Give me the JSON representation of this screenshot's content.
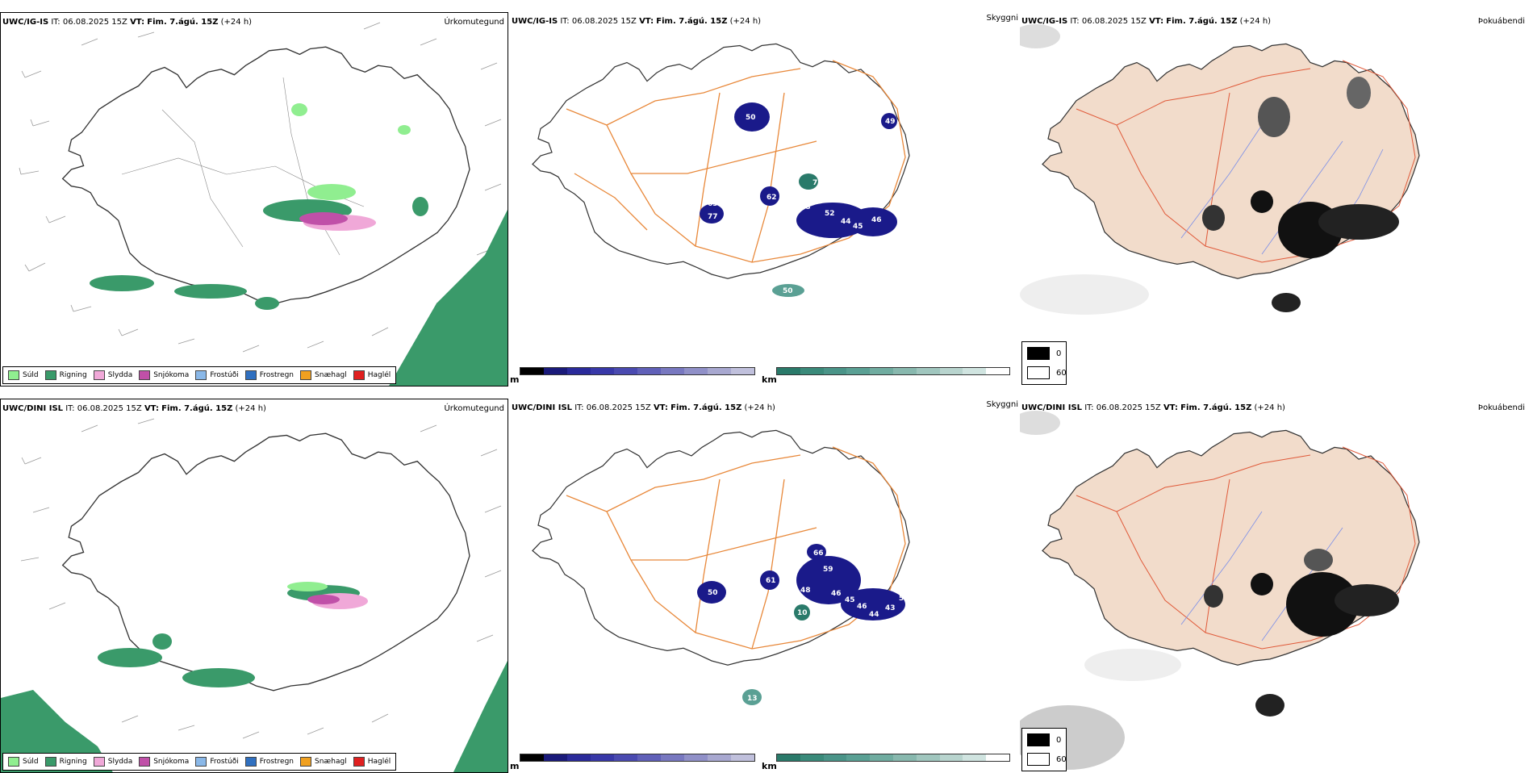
{
  "top_row": {
    "precip": {
      "model": "UWC/IG-IS",
      "it_label": "IT:",
      "it_value": "06.08.2025 15Z",
      "vt_label": "VT:",
      "vt_value": "Fim. 7.ágú. 15Z",
      "lead": "(+24 h)",
      "title": "Úrkomutegund"
    },
    "cloud": {
      "model": "UWC/IG-IS",
      "it_label": "IT:",
      "it_value": "06.08.2025 15Z",
      "vt_label": "VT:",
      "vt_value": "Fim. 7.ágú. 15Z",
      "lead": "(+24 h)",
      "title": "Skyggni",
      "numbers": [
        "50",
        "62",
        "63",
        "77",
        "78",
        "52",
        "44",
        "45",
        "46",
        "38",
        "49",
        "50",
        "47"
      ]
    },
    "fog": {
      "model": "UWC/IG-IS",
      "it_label": "IT:",
      "it_value": "06.08.2025 15Z",
      "vt_label": "VT:",
      "vt_value": "Fim. 7.ágú. 15Z",
      "lead": "(+24 h)",
      "title": "Þokuábendi"
    }
  },
  "bottom_row": {
    "precip": {
      "model": "UWC/DINI ISL",
      "it_label": "IT:",
      "it_value": "06.08.2025 15Z",
      "vt_label": "VT:",
      "vt_value": "Fim. 7.ágú. 15Z",
      "lead": "(+24 h)",
      "title": "Úrkomutegund"
    },
    "cloud": {
      "model": "UWC/DINI ISL",
      "it_label": "IT:",
      "it_value": "06.08.2025 15Z",
      "vt_label": "VT:",
      "vt_value": "Fim. 7.ágú. 15Z",
      "lead": "(+24 h)",
      "title": "Skyggni",
      "numbers": [
        "50",
        "61",
        "66",
        "59",
        "48",
        "46",
        "45",
        "46",
        "44",
        "43",
        "53",
        "10",
        "13"
      ]
    },
    "fog": {
      "model": "UWC/DINI ISL",
      "it_label": "IT:",
      "it_value": "06.08.2025 15Z",
      "vt_label": "VT:",
      "vt_value": "Fim. 7.ágú. 15Z",
      "lead": "(+24 h)",
      "title": "Þokuábendi"
    }
  },
  "precip_legend": [
    {
      "label": "Súld",
      "color": "#90ee90"
    },
    {
      "label": "Rigning",
      "color": "#3a9a6a"
    },
    {
      "label": "Slydda",
      "color": "#f0a8d8"
    },
    {
      "label": "Snjókoma",
      "color": "#c050a8"
    },
    {
      "label": "Frostúði",
      "color": "#8ab8e8"
    },
    {
      "label": "Frostregn",
      "color": "#3070c0"
    },
    {
      "label": "Snæhagl",
      "color": "#f0a020"
    },
    {
      "label": "Haglél",
      "color": "#e02020"
    }
  ],
  "cloud_base_bar": {
    "unit": "m",
    "ticks": [
      "0",
      "200",
      "400",
      "600",
      "800",
      "1000"
    ],
    "colors": [
      "#000000",
      "#1a1a7a",
      "#2a2a9a",
      "#3838a8",
      "#4a4ab0",
      "#6060b8",
      "#7878c0",
      "#9090c8",
      "#a8a8d0",
      "#c0c0dc"
    ]
  },
  "cloud_height_bar": {
    "unit": "km",
    "ticks": [
      "1",
      "2",
      "3",
      "4",
      "5",
      "6",
      "7",
      "8",
      "9",
      "10"
    ],
    "colors": [
      "#2a7a6a",
      "#3a8a7a",
      "#4a9488",
      "#5aa094",
      "#70aca0",
      "#88b8ae",
      "#a0c6be",
      "#b8d4ce",
      "#d0e4e0",
      "#ffffff"
    ]
  },
  "fog_legend": {
    "top": {
      "label": "0",
      "color": "#000000"
    },
    "bottom": {
      "label": "60",
      "color": "#ffffff"
    }
  }
}
